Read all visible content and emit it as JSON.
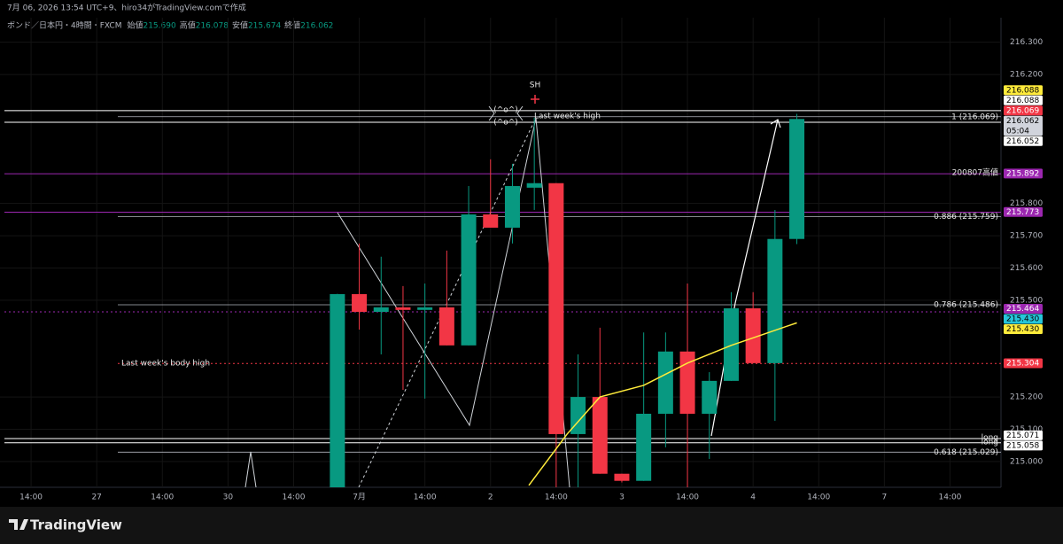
{
  "header": {
    "credit": "7月 06, 2026 13:54 UTC+9、hiro34がTradingView.comで作成",
    "symbol": "ボンド／日本円・4時間・FXCM",
    "ohlc": [
      {
        "label": "始値",
        "value": "215.690"
      },
      {
        "label": "高値",
        "value": "216.078"
      },
      {
        "label": "安値",
        "value": "215.674"
      },
      {
        "label": "終値",
        "value": "216.062"
      }
    ]
  },
  "chart_data": {
    "type": "candlestick",
    "xlim": [
      -1.42,
      44.33
    ],
    "ylim": [
      214.92,
      216.376
    ],
    "xticks": [
      {
        "value": 0,
        "label": "14:00"
      },
      {
        "value": 3,
        "label": "27"
      },
      {
        "value": 6,
        "label": "14:00"
      },
      {
        "value": 9,
        "label": "30"
      },
      {
        "value": 12,
        "label": "14:00"
      },
      {
        "value": 15,
        "label": "7月"
      },
      {
        "value": 18,
        "label": "14:00"
      },
      {
        "value": 21,
        "label": "2"
      },
      {
        "value": 24,
        "label": "14:00"
      },
      {
        "value": 27,
        "label": "3"
      },
      {
        "value": 30,
        "label": "14:00"
      },
      {
        "value": 33,
        "label": "4"
      },
      {
        "value": 36,
        "label": "14:00"
      },
      {
        "value": 39,
        "label": "7"
      },
      {
        "value": 42,
        "label": "14:00"
      }
    ],
    "yticks": [
      {
        "value": 215,
        "label": "215.000"
      },
      {
        "value": 215.1,
        "label": "215.100"
      },
      {
        "value": 215.2,
        "label": "215.200"
      },
      {
        "value": 215.5,
        "label": "215.500"
      },
      {
        "value": 215.6,
        "label": "215.600"
      },
      {
        "value": 215.7,
        "label": "215.700"
      },
      {
        "value": 215.8,
        "label": "215.800"
      },
      {
        "value": 216.2,
        "label": "216.200"
      },
      {
        "value": 216.3,
        "label": "216.300"
      }
    ],
    "up_color": "#089981",
    "down_color": "#f23645",
    "candles": {
      "x": [
        14,
        15,
        16,
        17,
        18,
        19,
        20,
        21,
        22,
        23,
        24,
        25,
        26,
        27,
        28,
        29,
        30,
        31,
        32,
        33,
        34,
        35
      ],
      "open": [
        214.92,
        215.519,
        215.464,
        215.478,
        215.47,
        215.478,
        215.36,
        215.766,
        215.725,
        215.849,
        215.863,
        215.085,
        215.2,
        214.962,
        214.94,
        215.148,
        215.341,
        215.148,
        215.25,
        215.475,
        215.305,
        215.69
      ],
      "high": [
        215.52,
        215.676,
        215.635,
        215.544,
        215.552,
        215.654,
        215.854,
        215.937,
        215.923,
        216.066,
        215.863,
        215.332,
        215.415,
        214.962,
        215.4,
        215.4,
        215.552,
        215.277,
        215.525,
        215.525,
        215.78,
        216.078
      ],
      "low": [
        214.92,
        215.409,
        215.332,
        215.222,
        215.195,
        215.36,
        215.36,
        215.725,
        215.676,
        215.78,
        214.92,
        214.92,
        214.962,
        214.935,
        214.94,
        215.044,
        214.92,
        215.008,
        215.25,
        215.305,
        215.126,
        215.674
      ],
      "close": [
        215.519,
        215.464,
        215.478,
        215.47,
        215.478,
        215.36,
        215.766,
        215.725,
        215.854,
        215.863,
        215.085,
        215.2,
        214.962,
        214.94,
        215.148,
        215.341,
        215.148,
        215.25,
        215.475,
        215.305,
        215.69,
        216.062
      ]
    },
    "ma": {
      "color": "#ffeb3b",
      "x": [
        22.75,
        24.5,
        26,
        28,
        30,
        32,
        35
      ],
      "values": [
        214.926,
        215.085,
        215.2,
        215.236,
        215.305,
        215.36,
        215.43
      ]
    },
    "last_price": {
      "value": 216.062,
      "badge": "216.062",
      "countdown": "05:04",
      "badge_color": "#d1d4dc"
    },
    "levels": [
      {
        "value": 216.088,
        "badge": "216.088",
        "badge_color": "#ffeb3b"
      },
      {
        "value": 216.088,
        "badge": "216.088",
        "badge_color": "#ffffff",
        "line": "solid",
        "line_color": "#ffffff"
      },
      {
        "value": 216.069,
        "badge": "216.069",
        "badge_color": "#f23645"
      },
      {
        "value": 216.052,
        "badge": "216.052",
        "badge_color": "#ffffff",
        "line": "solid",
        "line_color": "#ffffff"
      },
      {
        "value": 215.892,
        "badge": "215.892",
        "badge_color": "#9c27b0",
        "line": "solid",
        "line_color": "#9c27b0",
        "text": "200807高値",
        "text_side": "right"
      },
      {
        "value": 215.773,
        "badge": "215.773",
        "badge_color": "#9c27b0",
        "line": "solid",
        "line_color": "#9c27b0"
      },
      {
        "value": 215.464,
        "badge": "215.464",
        "badge_color": "#9c27b0",
        "line": "dotted",
        "line_color": "#9c27b0"
      },
      {
        "value": 215.43,
        "badge": "215.430",
        "badge_color": "#26c6da"
      },
      {
        "value": 215.43,
        "badge": "215.430",
        "badge_color": "#ffeb3b"
      },
      {
        "value": 215.304,
        "badge": "215.304",
        "badge_color": "#f23645",
        "line": "dotted",
        "line_color": "#f23645",
        "text": "Last week's body high",
        "text_side": "left"
      },
      {
        "value": 215.071,
        "badge": "215.071",
        "badge_color": "#ffffff",
        "line": "solid",
        "line_color": "#ffffff",
        "text": "long",
        "text_side": "right"
      },
      {
        "value": 215.058,
        "badge": "215.058",
        "badge_color": "#ffffff",
        "line": "solid",
        "line_color": "#ffffff",
        "text": "long",
        "text_side": "right"
      }
    ],
    "fib": [
      {
        "value": 216.069,
        "text": "1 (216.069)"
      },
      {
        "value": 215.759,
        "text": "0.886 (215.759)"
      },
      {
        "value": 215.486,
        "text": "0.786 (215.486)"
      },
      {
        "value": 215.029,
        "text": "0.618 (215.029)"
      }
    ],
    "annotations": {
      "sh": "SH",
      "last_week_high": "Last week's high",
      "face": "(^o^)"
    }
  },
  "footer": {
    "brand": "TradingView"
  }
}
